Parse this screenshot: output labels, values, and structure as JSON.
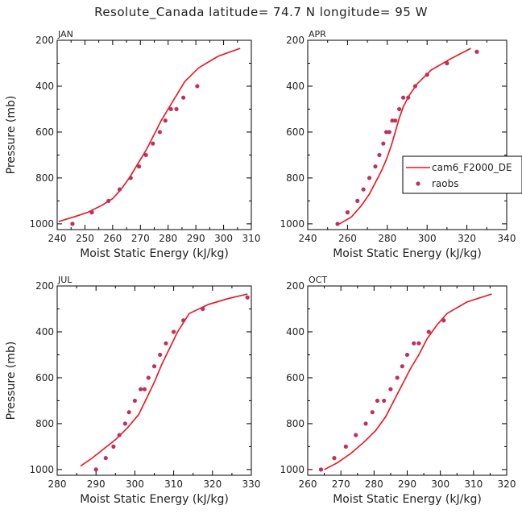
{
  "figure": {
    "title": "Resolute_Canada   latitude= 74.7 N longitude= 95 W"
  },
  "colors": {
    "model_line": "#e8141c",
    "obs_points": "#c0305a",
    "axis": "#000000"
  },
  "legend": {
    "placement": "right of APR panel",
    "entries": [
      {
        "label": "cam6_F2000_DE",
        "marker": "line"
      },
      {
        "label": "raobs",
        "marker": "dot"
      }
    ]
  },
  "chart_data": [
    {
      "type": "line",
      "panel_label": "JAN",
      "xlabel": "Moist Static Energy (kJ/kg)",
      "ylabel": "Pressure (mb)",
      "xlim": [
        240,
        310
      ],
      "ylim": [
        1025,
        200
      ],
      "y_inverted": true,
      "xticks": [
        240,
        250,
        260,
        270,
        280,
        290,
        300,
        310
      ],
      "yticks": [
        200,
        400,
        600,
        800,
        1000
      ],
      "series": [
        {
          "name": "cam6_F2000_DE",
          "kind": "line",
          "x": [
            240.5,
            246,
            251,
            256,
            260,
            263,
            266,
            269,
            272,
            275,
            277.5,
            280,
            283,
            286,
            291,
            298,
            306
          ],
          "y": [
            990,
            970,
            950,
            920,
            890,
            850,
            800,
            740,
            680,
            610,
            550,
            500,
            440,
            380,
            320,
            270,
            235
          ]
        },
        {
          "name": "raobs",
          "kind": "scatter",
          "x": [
            245.5,
            252.5,
            258.5,
            262.5,
            266.5,
            269.5,
            272,
            274.5,
            277,
            279,
            281,
            283,
            285.5,
            290.5
          ],
          "y": [
            1000,
            950,
            900,
            850,
            800,
            750,
            700,
            650,
            600,
            550,
            500,
            500,
            450,
            400
          ]
        }
      ]
    },
    {
      "type": "line",
      "panel_label": "APR",
      "xlabel": "Moist Static Energy (kJ/kg)",
      "ylabel": "",
      "xlim": [
        240,
        340
      ],
      "ylim": [
        1025,
        200
      ],
      "y_inverted": true,
      "xticks": [
        240,
        260,
        280,
        300,
        320,
        340
      ],
      "yticks": [
        200,
        400,
        600,
        800,
        1000
      ],
      "series": [
        {
          "name": "cam6_F2000_DE",
          "kind": "line",
          "x": [
            256,
            262,
            267,
            271,
            274,
            277,
            279.5,
            282,
            284,
            286,
            288,
            291,
            295,
            302,
            312,
            322
          ],
          "y": [
            1000,
            970,
            920,
            870,
            820,
            770,
            720,
            660,
            600,
            540,
            490,
            440,
            390,
            330,
            280,
            235
          ]
        },
        {
          "name": "raobs",
          "kind": "scatter",
          "x": [
            255,
            260,
            265,
            268,
            271,
            274,
            276,
            278,
            279.5,
            281,
            282.5,
            284,
            286,
            288,
            290.5,
            294,
            300,
            310,
            325
          ],
          "y": [
            1000,
            950,
            900,
            850,
            800,
            750,
            700,
            650,
            600,
            600,
            550,
            550,
            500,
            450,
            450,
            400,
            350,
            300,
            250
          ]
        }
      ]
    },
    {
      "type": "line",
      "panel_label": "JUL",
      "xlabel": "Moist Static Energy (kJ/kg)",
      "ylabel": "Pressure (mb)",
      "xlim": [
        280,
        330
      ],
      "ylim": [
        1025,
        200
      ],
      "y_inverted": true,
      "xticks": [
        280,
        290,
        300,
        310,
        320,
        330
      ],
      "yticks": [
        200,
        400,
        600,
        800,
        1000
      ],
      "series": [
        {
          "name": "cam6_F2000_DE",
          "kind": "line",
          "x": [
            286,
            289,
            292,
            295,
            298,
            301,
            303,
            305,
            307,
            309,
            311,
            314,
            319,
            324,
            329
          ],
          "y": [
            985,
            950,
            910,
            870,
            820,
            760,
            690,
            620,
            540,
            470,
            400,
            320,
            280,
            255,
            235
          ]
        },
        {
          "name": "raobs",
          "kind": "scatter",
          "x": [
            290,
            292.5,
            294.5,
            296,
            297.5,
            298.5,
            300,
            301.5,
            302.5,
            303.5,
            305,
            306.5,
            308,
            310,
            312.5,
            317.5,
            329
          ],
          "y": [
            1000,
            950,
            900,
            850,
            800,
            750,
            700,
            650,
            650,
            600,
            550,
            500,
            450,
            400,
            350,
            300,
            250
          ]
        }
      ]
    },
    {
      "type": "line",
      "panel_label": "OCT",
      "xlabel": "Moist Static Energy (kJ/kg)",
      "ylabel": "",
      "xlim": [
        260,
        320
      ],
      "ylim": [
        1025,
        200
      ],
      "y_inverted": true,
      "xticks": [
        260,
        270,
        280,
        290,
        300,
        310,
        320
      ],
      "yticks": [
        200,
        400,
        600,
        800,
        1000
      ],
      "series": [
        {
          "name": "cam6_F2000_DE",
          "kind": "line",
          "x": [
            265,
            269,
            273,
            277,
            280.5,
            283.5,
            286,
            288.5,
            291,
            293.5,
            296,
            299,
            302,
            308,
            315.5
          ],
          "y": [
            1000,
            970,
            930,
            880,
            830,
            770,
            700,
            630,
            560,
            500,
            430,
            370,
            320,
            270,
            235
          ]
        },
        {
          "name": "raobs",
          "kind": "scatter",
          "x": [
            264,
            268,
            271.5,
            274.5,
            277.5,
            279.5,
            281,
            283,
            285,
            287,
            288.5,
            290,
            292,
            293.5,
            296.5,
            301
          ],
          "y": [
            1000,
            950,
            900,
            850,
            800,
            750,
            700,
            700,
            650,
            600,
            550,
            500,
            450,
            450,
            400,
            350
          ]
        }
      ]
    }
  ]
}
